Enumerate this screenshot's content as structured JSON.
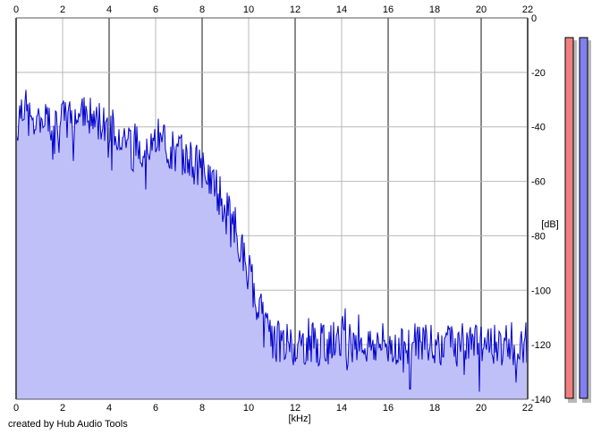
{
  "credit": "created by Hub Audio Tools",
  "chart_data": {
    "type": "area",
    "xlabel": "[kHz]",
    "ylabel": "[dB]",
    "xlim": [
      0,
      22
    ],
    "ylim": [
      -140,
      0
    ],
    "x_ticks": [
      0,
      2,
      4,
      6,
      8,
      10,
      12,
      14,
      16,
      18,
      20,
      22
    ],
    "y_ticks": [
      0,
      -20,
      -40,
      -60,
      -80,
      -100,
      -120,
      -140
    ],
    "grid": true,
    "x_tick_labels_position": "top and bottom",
    "y_tick_labels_position": "right",
    "series": [
      {
        "x": [
          0,
          0.25,
          0.5,
          0.75,
          1,
          1.5,
          2,
          2.5,
          3,
          3.5,
          4,
          4.5,
          5,
          5.5,
          6,
          6.5,
          7,
          7.5,
          8,
          8.25,
          8.5,
          8.75,
          9,
          9.25,
          9.5,
          9.75,
          10,
          10.25,
          10.5,
          10.75,
          11,
          11.5,
          12,
          13,
          14,
          15,
          16,
          17,
          18,
          19,
          20,
          21,
          22
        ],
        "values": [
          -42,
          -30,
          -36,
          -40,
          -40,
          -38,
          -38,
          -36,
          -36,
          -38,
          -38,
          -42,
          -46,
          -47,
          -45,
          -48,
          -50,
          -52,
          -56,
          -58,
          -61,
          -65,
          -70,
          -75,
          -80,
          -86,
          -93,
          -100,
          -108,
          -115,
          -118,
          -119,
          -120,
          -120,
          -119,
          -120,
          -120,
          -119,
          -120,
          -120,
          -120,
          -120,
          -119
        ],
        "line_color": "#0000cc",
        "fill_color": "#c0c0f8"
      }
    ],
    "level_meters": [
      {
        "channel": "left",
        "color": "#f08080"
      },
      {
        "channel": "right",
        "color": "#8080f0"
      }
    ]
  }
}
